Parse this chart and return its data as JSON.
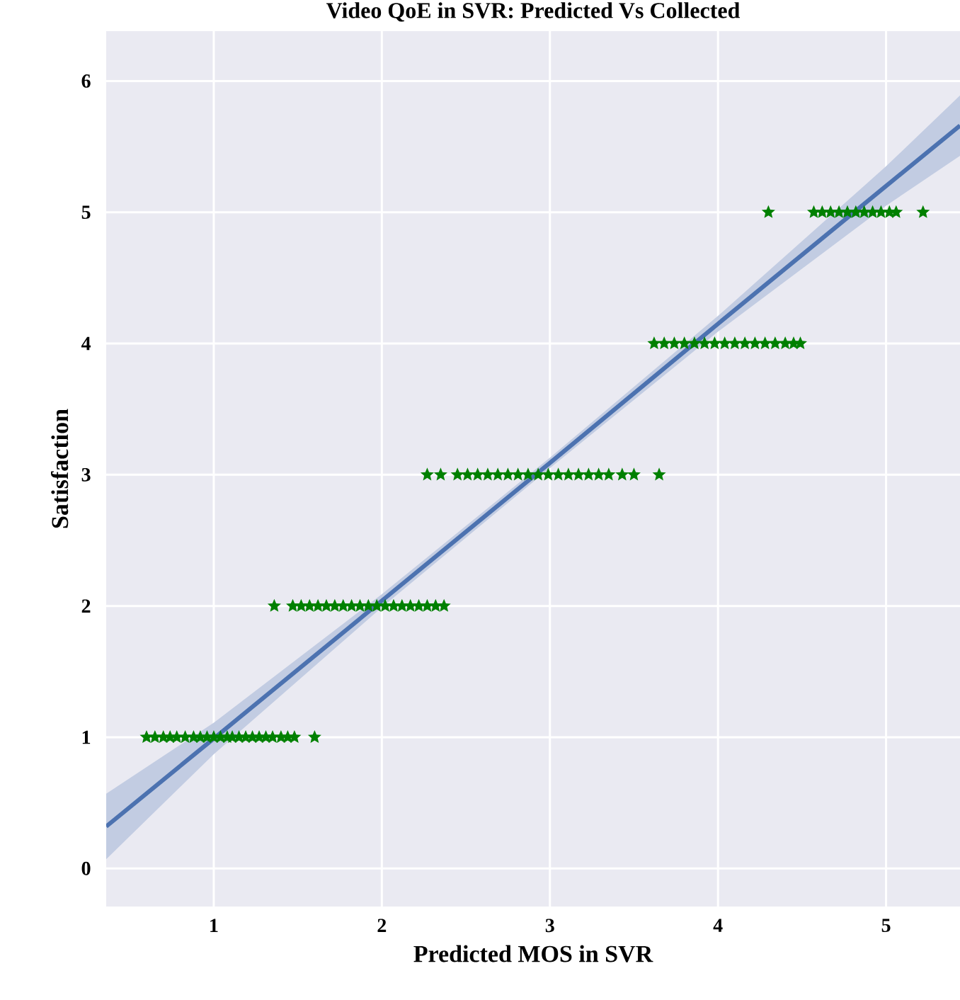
{
  "chart_data": {
    "type": "scatter",
    "title": "Video QoE in SVR: Predicted Vs Collected",
    "xlabel": "Predicted MOS in SVR",
    "ylabel": "Satisfaction",
    "xlim": [
      0.36,
      5.44
    ],
    "ylim": [
      -0.29,
      6.38
    ],
    "xticks": [
      1,
      2,
      3,
      4,
      5
    ],
    "yticks": [
      0,
      1,
      2,
      3,
      4,
      5,
      6
    ],
    "grid": true,
    "series": [
      {
        "color": "#008000",
        "marker": "star",
        "x": [
          0.6,
          0.65,
          0.7,
          0.74,
          0.78,
          0.83,
          0.88,
          0.92,
          0.96,
          1.0,
          1.04,
          1.08,
          1.11,
          1.15,
          1.19,
          1.23,
          1.27,
          1.31,
          1.35,
          1.4,
          1.44,
          1.48,
          1.6,
          1.36,
          1.47,
          1.52,
          1.57,
          1.62,
          1.67,
          1.72,
          1.77,
          1.82,
          1.87,
          1.92,
          1.97,
          2.02,
          2.07,
          2.12,
          2.17,
          2.22,
          2.27,
          2.32,
          2.37,
          2.27,
          2.35,
          2.45,
          2.51,
          2.57,
          2.63,
          2.69,
          2.75,
          2.81,
          2.87,
          2.93,
          2.99,
          3.05,
          3.11,
          3.17,
          3.23,
          3.29,
          3.35,
          3.43,
          3.5,
          3.65,
          3.62,
          3.68,
          3.74,
          3.8,
          3.86,
          3.92,
          3.98,
          4.04,
          4.1,
          4.16,
          4.22,
          4.28,
          4.34,
          4.4,
          4.45,
          4.49,
          4.3,
          4.57,
          4.62,
          4.67,
          4.72,
          4.77,
          4.82,
          4.87,
          4.92,
          4.97,
          5.02,
          5.06,
          5.22
        ],
        "values": [
          1,
          1,
          1,
          1,
          1,
          1,
          1,
          1,
          1,
          1,
          1,
          1,
          1,
          1,
          1,
          1,
          1,
          1,
          1,
          1,
          1,
          1,
          1,
          2,
          2,
          2,
          2,
          2,
          2,
          2,
          2,
          2,
          2,
          2,
          2,
          2,
          2,
          2,
          2,
          2,
          2,
          2,
          2,
          3,
          3,
          3,
          3,
          3,
          3,
          3,
          3,
          3,
          3,
          3,
          3,
          3,
          3,
          3,
          3,
          3,
          3,
          3,
          3,
          3,
          4,
          4,
          4,
          4,
          4,
          4,
          4,
          4,
          4,
          4,
          4,
          4,
          4,
          4,
          4,
          4,
          5,
          5,
          5,
          5,
          5,
          5,
          5,
          5,
          5,
          5,
          5,
          5,
          5
        ]
      },
      {
        "type": "line",
        "color": "#4c72b0",
        "x": [
          0.36,
          1,
          2,
          3,
          4,
          5,
          5.44
        ],
        "values": [
          0.32,
          0.99,
          2.04,
          3.09,
          4.15,
          5.2,
          5.66
        ],
        "lower": [
          0.07,
          0.87,
          1.99,
          3.05,
          4.09,
          5.05,
          5.43
        ],
        "upper": [
          0.57,
          1.11,
          2.09,
          3.13,
          4.21,
          5.35,
          5.89
        ]
      }
    ]
  }
}
